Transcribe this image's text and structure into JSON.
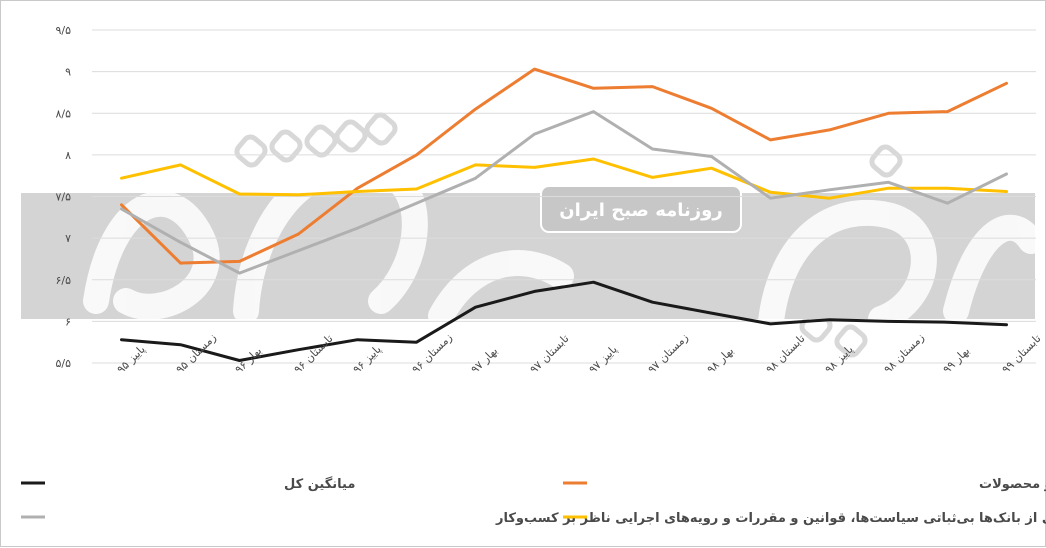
{
  "chart_data": {
    "type": "line",
    "categories": [
      "پاییز ۹۵",
      "زمستان ۹۵",
      "بهار ۹۶",
      "تابستان ۹۶",
      "پاییز ۹۶",
      "زمستان ۹۶",
      "بهار ۹۷",
      "تابستان ۹۷",
      "پاییز ۹۷",
      "زمستان ۹۷",
      "بهار ۹۸",
      "تابستان ۹۸",
      "پاییز ۹۸",
      "زمستان ۹۸",
      "بهار ۹۹",
      "تابستان ۹۹"
    ],
    "yticks": [
      {
        "value": 5.5,
        "label": "۵/۵"
      },
      {
        "value": 6,
        "label": "۶"
      },
      {
        "value": 6.5,
        "label": "۶/۵"
      },
      {
        "value": 7,
        "label": "۷"
      },
      {
        "value": 7.5,
        "label": "۷/۵"
      },
      {
        "value": 8,
        "label": "۸"
      },
      {
        "value": 8.5,
        "label": "۸/۵"
      },
      {
        "value": 9,
        "label": "۹"
      },
      {
        "value": 9.5,
        "label": "۹/۵"
      }
    ],
    "ylim": [
      5.5,
      9.5
    ],
    "grid": true,
    "series": [
      {
        "name": "غیرقابل پیش‌بینی بودن و تغییرات قیمت مواد اولیه و محصولات",
        "color": "#ed7d31",
        "values": [
          7.4,
          6.7,
          6.72,
          7.05,
          7.6,
          8.0,
          8.55,
          9.03,
          8.8,
          8.82,
          8.56,
          8.18,
          8.3,
          8.5,
          8.52,
          8.86
        ]
      },
      {
        "name": "میانگین کل",
        "color": "#1a1a1a",
        "values": [
          5.78,
          5.72,
          5.53,
          5.66,
          5.78,
          5.75,
          6.17,
          6.36,
          6.47,
          6.23,
          6.1,
          5.97,
          6.02,
          6.0,
          5.99,
          5.96
        ]
      },
      {
        "name": "دشواری تأمین مالی از بانک‌ها",
        "color": "#ffc000",
        "values": [
          7.72,
          7.88,
          7.53,
          7.52,
          7.56,
          7.59,
          7.88,
          7.85,
          7.95,
          7.73,
          7.84,
          7.55,
          7.48,
          7.6,
          7.6,
          7.56
        ]
      },
      {
        "name": "بی‌ثباتی سیاست‌ها، قوانین و مقررات و رویه‌های اجرایی ناظر بر کسب‌وکار",
        "color": "#b0b0b0",
        "values": [
          7.35,
          6.95,
          6.58,
          6.85,
          7.12,
          7.42,
          7.72,
          8.25,
          8.52,
          8.07,
          7.98,
          7.48,
          7.58,
          7.67,
          7.42,
          7.77
        ]
      }
    ]
  },
  "watermark": {
    "banner_text": "روزنامه صبح ایران"
  }
}
